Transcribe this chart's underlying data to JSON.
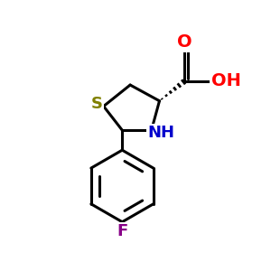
{
  "background_color": "#ffffff",
  "atom_colors": {
    "O": "#ff0000",
    "N": "#0000cc",
    "S": "#808000",
    "F": "#880088",
    "C": "#000000",
    "H": "#000000"
  },
  "bond_color": "#000000",
  "bond_width": 2.2,
  "fig_size": [
    3.0,
    3.0
  ],
  "dpi": 100
}
